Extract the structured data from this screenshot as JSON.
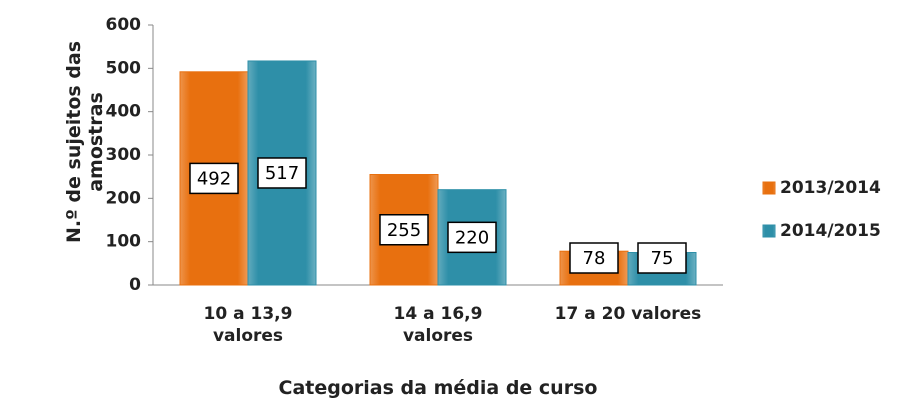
{
  "chart_data": {
    "type": "bar",
    "categories": [
      "10 a 13,9 valores",
      "14 a 16,9 valores",
      "17 a 20 valores"
    ],
    "series": [
      {
        "name": "2013/2014",
        "color": "#e8700f",
        "values": [
          492,
          255,
          78
        ]
      },
      {
        "name": "2014/2015",
        "color": "#2e8fa8",
        "values": [
          517,
          220,
          75
        ]
      }
    ],
    "ylim": [
      0,
      600
    ],
    "yticks": [
      0,
      100,
      200,
      300,
      400,
      500,
      600
    ],
    "x_label": "Categorias da média de curso",
    "y_label": "N.º de sujeitos das amostras",
    "legend": "right"
  }
}
